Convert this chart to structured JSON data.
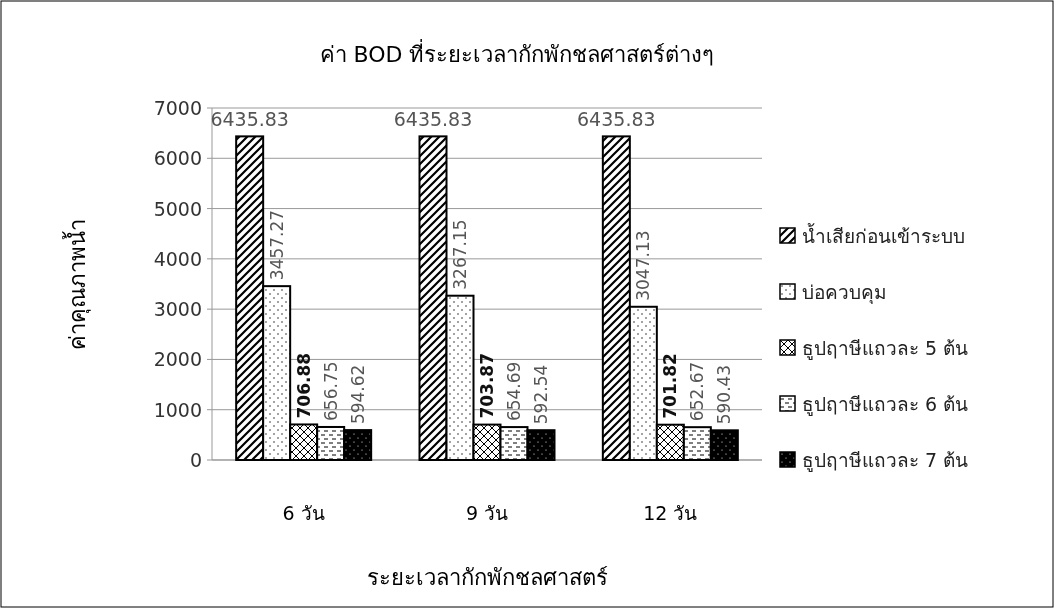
{
  "chart_data": {
    "type": "bar",
    "title": "ค่า BOD ที่ระยะเวลากักพักชลศาสตร์ต่างๆ",
    "xlabel": "ระยะเวลากักพักชลศาสตร์",
    "ylabel": "ค่าคุณภาพน้ำ",
    "categories": [
      "6 วัน",
      "9 วัน",
      "12 วัน"
    ],
    "series": [
      {
        "name": "น้ำเสียก่อนเข้าระบบ",
        "color": "#000000",
        "values": [
          6435.83,
          6435.83,
          6435.83
        ]
      },
      {
        "name": "บ่อควบคุม",
        "color": "#000000",
        "values": [
          3457.27,
          3267.15,
          3047.13
        ]
      },
      {
        "name": "ธูปฤาษีแถวละ 5 ต้น",
        "color": "#000000",
        "values": [
          706.88,
          703.87,
          701.82
        ]
      },
      {
        "name": "ธูปฤาษีแถวละ 6 ต้น",
        "color": "#000000",
        "values": [
          656.75,
          654.69,
          652.67
        ]
      },
      {
        "name": "ธูปฤาษีแถวละ 7 ต้น",
        "color": "#000000",
        "values": [
          594.62,
          592.54,
          590.43
        ]
      }
    ],
    "ylim": [
      0,
      7000
    ],
    "yticks": [
      0,
      1000,
      2000,
      3000,
      4000,
      5000,
      6000,
      7000
    ],
    "grid": "y",
    "legend": "right",
    "data_labels": true
  }
}
